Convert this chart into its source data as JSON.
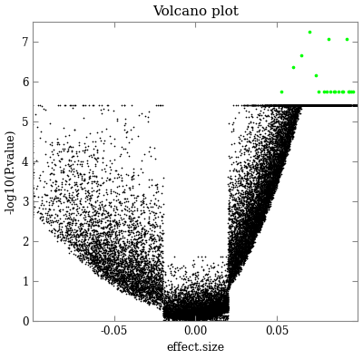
{
  "title": "Volcano plot",
  "xlabel": "effect.size",
  "ylabel": "-log10(P.value)",
  "xlim": [
    -0.1,
    0.1
  ],
  "ylim": [
    0,
    7.5
  ],
  "xticks": [
    -0.05,
    0.0,
    0.05
  ],
  "yticks": [
    0,
    1,
    2,
    3,
    4,
    5,
    6,
    7
  ],
  "background_color": "#ffffff",
  "plot_bg_color": "#ffffff",
  "black_color": "#000000",
  "green_color": "#00ff00",
  "point_size_black": 1.5,
  "point_size_green": 7,
  "seed": 42,
  "green_points": [
    [
      0.053,
      5.75
    ],
    [
      0.06,
      6.35
    ],
    [
      0.065,
      6.65
    ],
    [
      0.07,
      7.25
    ],
    [
      0.074,
      6.15
    ],
    [
      0.076,
      5.75
    ],
    [
      0.079,
      5.75
    ],
    [
      0.081,
      5.75
    ],
    [
      0.083,
      5.75
    ],
    [
      0.085,
      5.75
    ],
    [
      0.086,
      5.75
    ],
    [
      0.088,
      5.75
    ],
    [
      0.09,
      5.75
    ],
    [
      0.082,
      7.05
    ],
    [
      0.091,
      5.75
    ],
    [
      0.093,
      7.05
    ],
    [
      0.094,
      5.75
    ],
    [
      0.095,
      5.75
    ],
    [
      0.096,
      5.75
    ],
    [
      0.097,
      5.75
    ]
  ]
}
